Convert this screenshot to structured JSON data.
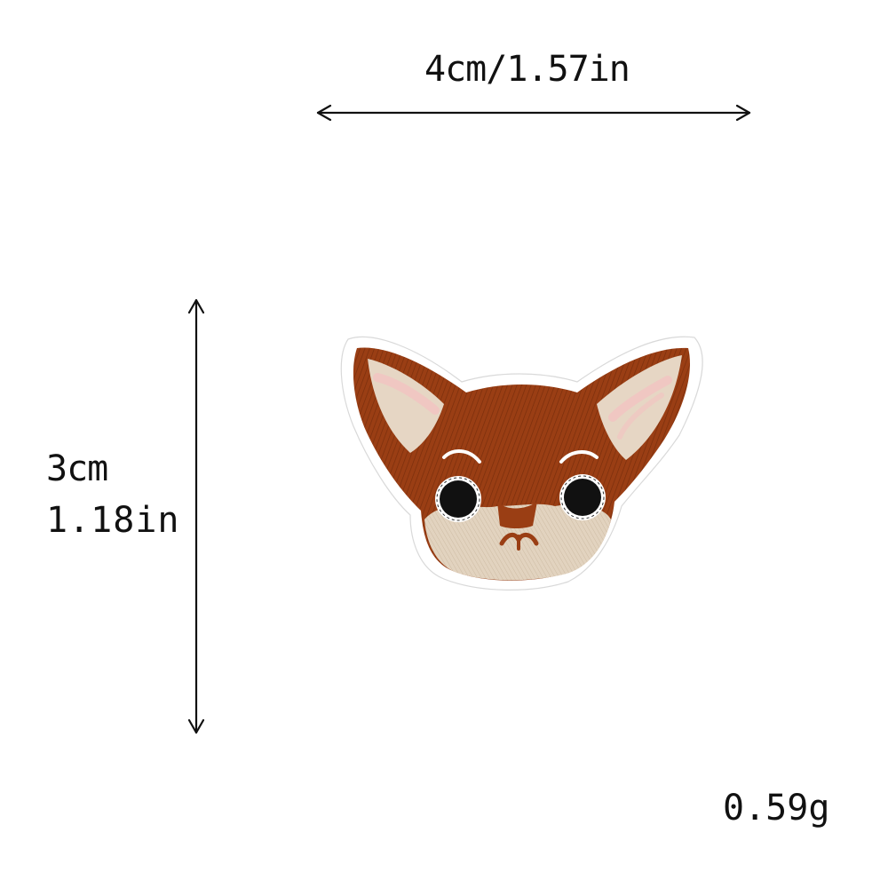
{
  "dimensions": {
    "width_label": "4cm/1.57in",
    "height_cm_label": "3cm",
    "height_in_label": "1.18in"
  },
  "weight_label": "0.59g",
  "colors": {
    "fur": "#9a3e14",
    "fur_dark": "#7d300e",
    "ear_inner": "#e6d6c4",
    "ear_pink": "#f1c4c2",
    "muzzle": "#e2d3bf",
    "eye": "#111111",
    "border": "#ffffff",
    "arrow": "#111111"
  },
  "icons": {
    "horizontal_arrow": "double-headed-horizontal-arrow",
    "vertical_arrow": "double-headed-vertical-arrow",
    "patch": "chihuahua-embroidered-patch"
  }
}
